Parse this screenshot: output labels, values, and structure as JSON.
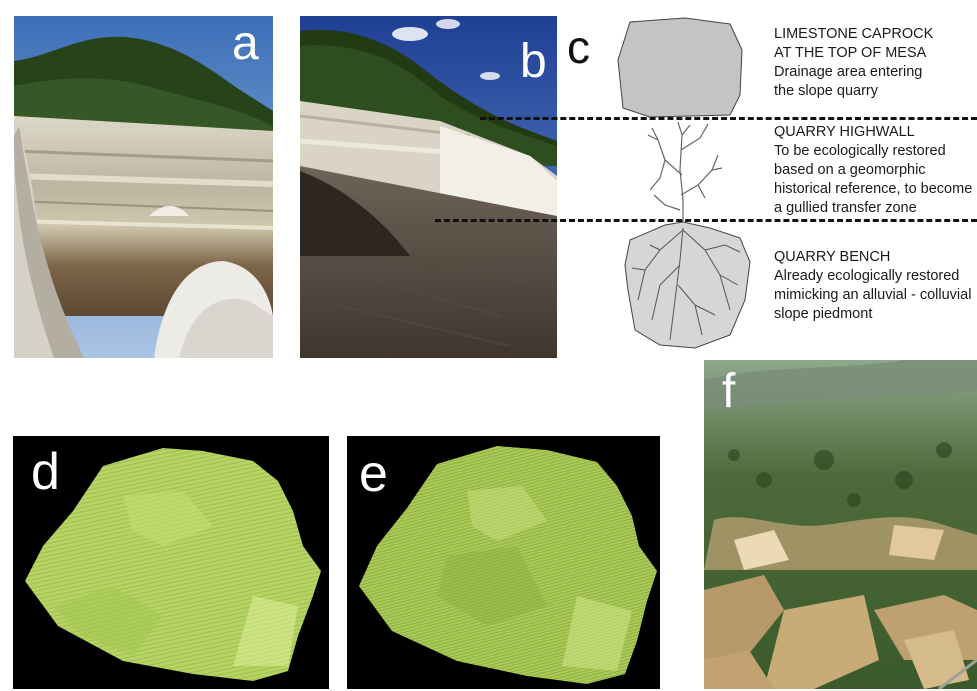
{
  "panels": {
    "a": {
      "letter": "a"
    },
    "b": {
      "letter": "b"
    },
    "c": {
      "letter": "c",
      "caprock_title": "LIMESTONE CAPROCK\nAT THE TOP OF MESA",
      "caprock_desc": "Drainage area entering\nthe slope quarry",
      "highwall_title": "QUARRY HIGHWALL",
      "highwall_desc": "To be ecologically restored\nbased on a geomorphic\nhistorical reference, to become\na gullied transfer zone",
      "bench_title": "QUARRY BENCH",
      "bench_desc": "Already ecologically restored\nmimicking an alluvial - colluvial\nslope piedmont"
    },
    "d": {
      "letter": "d"
    },
    "e": {
      "letter": "e"
    },
    "f": {
      "letter": "f"
    }
  },
  "colors": {
    "sky": "#4f86c8",
    "forest": "#2f4a1e",
    "highwall": "#c9c2ad",
    "mesh": "#b7d665",
    "mesh_background": "#000000",
    "diagram_fill": "#c8c8c8"
  }
}
